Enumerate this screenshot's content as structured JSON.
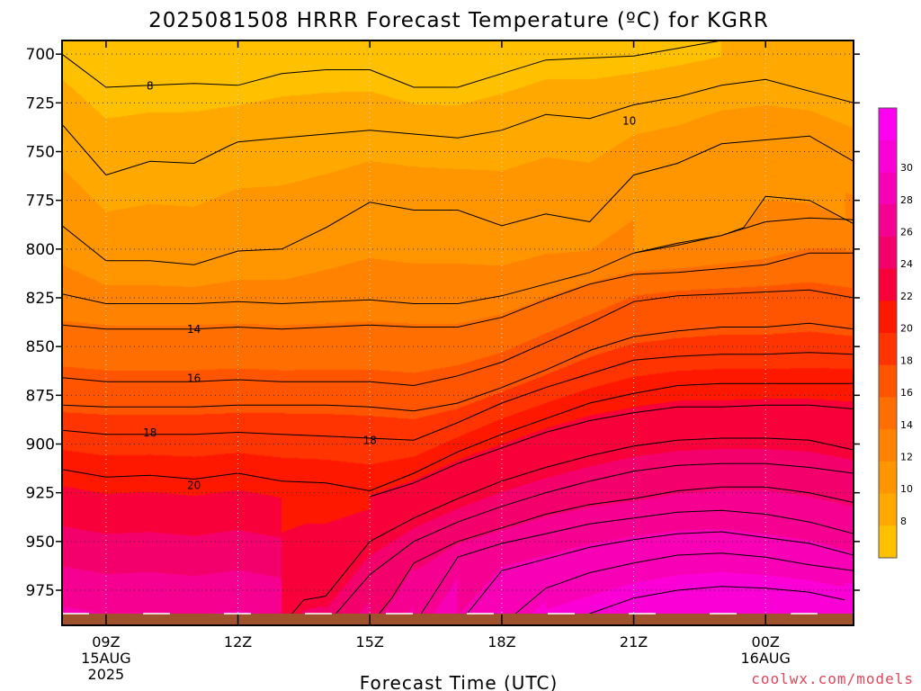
{
  "chart_data": {
    "type": "heatmap",
    "title": "2025081508 HRRR Forecast Temperature (ºC) for KGRR",
    "xlabel": "Forecast Time (UTC)",
    "ylabel": "",
    "credit": "coolwx.com/models",
    "x_ticks": [
      {
        "hour": 9,
        "label": "09Z",
        "sub1": "15AUG",
        "sub2": "2025"
      },
      {
        "hour": 12,
        "label": "12Z",
        "sub1": "",
        "sub2": ""
      },
      {
        "hour": 15,
        "label": "15Z",
        "sub1": "",
        "sub2": ""
      },
      {
        "hour": 18,
        "label": "18Z",
        "sub1": "",
        "sub2": ""
      },
      {
        "hour": 21,
        "label": "21Z",
        "sub1": "",
        "sub2": ""
      },
      {
        "hour": 24,
        "label": "00Z",
        "sub1": "16AUG",
        "sub2": ""
      }
    ],
    "xlim": [
      8,
      26
    ],
    "y_ticks": [
      700,
      725,
      750,
      775,
      800,
      825,
      850,
      875,
      900,
      925,
      950,
      975
    ],
    "ylim": [
      993,
      693
    ],
    "y_units": "hPa",
    "surface_pressure": 987,
    "colorbar": {
      "labels": [
        8,
        10,
        12,
        14,
        16,
        18,
        20,
        22,
        24,
        26,
        28,
        30
      ],
      "colors": [
        "#ffc000",
        "#ffa800",
        "#ff9600",
        "#ff8300",
        "#ff6e00",
        "#ff5500",
        "#ff3400",
        "#ff1800",
        "#f8003a",
        "#f4006c",
        "#f60092",
        "#f800b6",
        "#fb00d6",
        "#ff00f0"
      ]
    },
    "levels": [
      7,
      8,
      9,
      10,
      11,
      12,
      13,
      14,
      15,
      16,
      17,
      18,
      19,
      20,
      21,
      22,
      23,
      24,
      25,
      26,
      27,
      28,
      29,
      30
    ],
    "contour_labels": [
      {
        "value": 8,
        "hour": 10.0,
        "pressure": 716
      },
      {
        "value": 10,
        "hour": 20.9,
        "pressure": 734
      },
      {
        "value": 14,
        "hour": 11.0,
        "pressure": 841
      },
      {
        "value": 16,
        "hour": 11.0,
        "pressure": 866
      },
      {
        "value": 18,
        "hour": 10.0,
        "pressure": 894
      },
      {
        "value": 18,
        "hour": 15.0,
        "pressure": 898
      },
      {
        "value": 20,
        "hour": 11.0,
        "pressure": 921
      }
    ],
    "isotherms": [
      {
        "value": 8,
        "points": [
          [
            8,
            700
          ],
          [
            9,
            717
          ],
          [
            10,
            716
          ],
          [
            11,
            715
          ],
          [
            12,
            716
          ],
          [
            13,
            710
          ],
          [
            14,
            708
          ],
          [
            15,
            708
          ],
          [
            16,
            717
          ],
          [
            17,
            717
          ],
          [
            18,
            710
          ],
          [
            19,
            703
          ],
          [
            20,
            702
          ],
          [
            21,
            701
          ],
          [
            22,
            697
          ],
          [
            23,
            693
          ]
        ]
      },
      {
        "value": 10,
        "points": [
          [
            8,
            736
          ],
          [
            9,
            762
          ],
          [
            10,
            755
          ],
          [
            11,
            756
          ],
          [
            11.8,
            747
          ],
          [
            12,
            745
          ],
          [
            13,
            743
          ],
          [
            14,
            741
          ],
          [
            15,
            739
          ],
          [
            16,
            741
          ],
          [
            17,
            743
          ],
          [
            18,
            739
          ],
          [
            19,
            731
          ],
          [
            20,
            733
          ],
          [
            21,
            726
          ],
          [
            22,
            722
          ],
          [
            23,
            716
          ],
          [
            24,
            713
          ],
          [
            25,
            719
          ],
          [
            26,
            725
          ]
        ]
      },
      {
        "value": 11,
        "points": [
          [
            8,
            788
          ],
          [
            9,
            806
          ],
          [
            10,
            806
          ],
          [
            11,
            808
          ],
          [
            12,
            801
          ],
          [
            13,
            800
          ],
          [
            14,
            789
          ],
          [
            15,
            776
          ],
          [
            16,
            780
          ],
          [
            17,
            780
          ],
          [
            18,
            788
          ],
          [
            19,
            782
          ],
          [
            20,
            786
          ],
          [
            21,
            762
          ],
          [
            22,
            756
          ],
          [
            23,
            746
          ],
          [
            24,
            744
          ],
          [
            25,
            742
          ],
          [
            26,
            755
          ]
        ]
      },
      {
        "value": 12,
        "points": [
          [
            21,
            802
          ],
          [
            22,
            797
          ],
          [
            23,
            793
          ],
          [
            23.5,
            789
          ],
          [
            24,
            773
          ],
          [
            25,
            775
          ],
          [
            26,
            787
          ]
        ]
      },
      {
        "value": 13,
        "points": [
          [
            8,
            823
          ],
          [
            9,
            828
          ],
          [
            10,
            828
          ],
          [
            11,
            828
          ],
          [
            12,
            827
          ],
          [
            13,
            828
          ],
          [
            14,
            827
          ],
          [
            15,
            826
          ],
          [
            16,
            828
          ],
          [
            17,
            828
          ],
          [
            18,
            824
          ],
          [
            19,
            818
          ],
          [
            20,
            812
          ],
          [
            21,
            802
          ],
          [
            22,
            798
          ],
          [
            23,
            793
          ],
          [
            24,
            786
          ],
          [
            25,
            784
          ],
          [
            26,
            785
          ]
        ]
      },
      {
        "value": 14,
        "points": [
          [
            8,
            839
          ],
          [
            9,
            841
          ],
          [
            10,
            841
          ],
          [
            11,
            841
          ],
          [
            12,
            840
          ],
          [
            13,
            841
          ],
          [
            14,
            840
          ],
          [
            15,
            839
          ],
          [
            16,
            840
          ],
          [
            17,
            840
          ],
          [
            18,
            835
          ],
          [
            19,
            826
          ],
          [
            20,
            818
          ],
          [
            21,
            813
          ],
          [
            22,
            812
          ],
          [
            23,
            810
          ],
          [
            24,
            808
          ],
          [
            25,
            802
          ],
          [
            26,
            802
          ]
        ]
      },
      {
        "value": 16,
        "points": [
          [
            8,
            866
          ],
          [
            9,
            868
          ],
          [
            10,
            868
          ],
          [
            11,
            868
          ],
          [
            12,
            867
          ],
          [
            13,
            868
          ],
          [
            14,
            868
          ],
          [
            15,
            868
          ],
          [
            16,
            870
          ],
          [
            17,
            865
          ],
          [
            18,
            858
          ],
          [
            19,
            848
          ],
          [
            20,
            838
          ],
          [
            21,
            827
          ],
          [
            22,
            824
          ],
          [
            23,
            823
          ],
          [
            24,
            822
          ],
          [
            25,
            821
          ],
          [
            26,
            825
          ]
        ]
      },
      {
        "value": 17,
        "points": [
          [
            8,
            880
          ],
          [
            9,
            881
          ],
          [
            10,
            881
          ],
          [
            11,
            881
          ],
          [
            12,
            880
          ],
          [
            13,
            880
          ],
          [
            14,
            880
          ],
          [
            15,
            881
          ],
          [
            16,
            883
          ],
          [
            17,
            879
          ],
          [
            18,
            871
          ],
          [
            19,
            862
          ],
          [
            20,
            852
          ],
          [
            21,
            845
          ],
          [
            22,
            842
          ],
          [
            23,
            840
          ],
          [
            24,
            840
          ],
          [
            25,
            838
          ],
          [
            26,
            841
          ]
        ]
      },
      {
        "value": 18,
        "points": [
          [
            8,
            893
          ],
          [
            9,
            895
          ],
          [
            10,
            895
          ],
          [
            11,
            895
          ],
          [
            12,
            894
          ],
          [
            13,
            895
          ],
          [
            14,
            896
          ],
          [
            15,
            897
          ],
          [
            16,
            898
          ],
          [
            17,
            889
          ],
          [
            18,
            879
          ],
          [
            19,
            871
          ],
          [
            20,
            864
          ],
          [
            21,
            857
          ],
          [
            22,
            855
          ],
          [
            23,
            854
          ],
          [
            24,
            854
          ],
          [
            25,
            853
          ],
          [
            26,
            854
          ]
        ]
      },
      {
        "value": 20,
        "points": [
          [
            8,
            913
          ],
          [
            9,
            917
          ],
          [
            10,
            916
          ],
          [
            11,
            918
          ],
          [
            12,
            915
          ],
          [
            13,
            919
          ],
          [
            14,
            920
          ],
          [
            15,
            924
          ],
          [
            16,
            915
          ],
          [
            17,
            904
          ],
          [
            18,
            895
          ],
          [
            19,
            887
          ],
          [
            20,
            879
          ],
          [
            21,
            874
          ],
          [
            22,
            870
          ],
          [
            23,
            869
          ],
          [
            24,
            869
          ],
          [
            25,
            869
          ],
          [
            26,
            869
          ]
        ]
      },
      {
        "value": 21,
        "points": [
          [
            15,
            927
          ],
          [
            16,
            920
          ],
          [
            17,
            910
          ],
          [
            18,
            902
          ],
          [
            19,
            894
          ],
          [
            20,
            888
          ],
          [
            21,
            884
          ],
          [
            22,
            881
          ],
          [
            23,
            881
          ],
          [
            24,
            880
          ],
          [
            25,
            880
          ],
          [
            26,
            882
          ]
        ]
      },
      {
        "value": 22,
        "points": [
          [
            13,
            993
          ],
          [
            13.5,
            980
          ],
          [
            14,
            978
          ],
          [
            15,
            950
          ],
          [
            16,
            938
          ],
          [
            17,
            928
          ],
          [
            18,
            919
          ],
          [
            19,
            912
          ],
          [
            20,
            906
          ],
          [
            21,
            901
          ],
          [
            22,
            898
          ],
          [
            23,
            897
          ],
          [
            24,
            897
          ],
          [
            25,
            898
          ],
          [
            26,
            903
          ]
        ]
      },
      {
        "value": 23,
        "points": [
          [
            14,
            993
          ],
          [
            15,
            967
          ],
          [
            16,
            950
          ],
          [
            17,
            940
          ],
          [
            18,
            932
          ],
          [
            19,
            925
          ],
          [
            20,
            919
          ],
          [
            21,
            914
          ],
          [
            22,
            911
          ],
          [
            23,
            910
          ],
          [
            24,
            910
          ],
          [
            25,
            912
          ],
          [
            26,
            915
          ]
        ]
      },
      {
        "value": 24,
        "points": [
          [
            15,
            993
          ],
          [
            15.5,
            979
          ],
          [
            16,
            961
          ],
          [
            17,
            950
          ],
          [
            18,
            943
          ],
          [
            19,
            936
          ],
          [
            20,
            931
          ],
          [
            21,
            928
          ],
          [
            22,
            924
          ],
          [
            23,
            922
          ],
          [
            24,
            922
          ],
          [
            25,
            925
          ],
          [
            26,
            930
          ]
        ]
      },
      {
        "value": 25,
        "points": [
          [
            16,
            993
          ],
          [
            17,
            958
          ],
          [
            18,
            951
          ],
          [
            19,
            946
          ],
          [
            20,
            941
          ],
          [
            21,
            938
          ],
          [
            22,
            935
          ],
          [
            23,
            934
          ],
          [
            24,
            936
          ],
          [
            25,
            940
          ],
          [
            26,
            946
          ]
        ]
      },
      {
        "value": 26,
        "points": [
          [
            17,
            993
          ],
          [
            18,
            965
          ],
          [
            19,
            959
          ],
          [
            20,
            953
          ],
          [
            21,
            949
          ],
          [
            22,
            946
          ],
          [
            23,
            945
          ],
          [
            24,
            948
          ],
          [
            25,
            951
          ],
          [
            26,
            957
          ]
        ]
      },
      {
        "value": 27,
        "points": [
          [
            18,
            993
          ],
          [
            19,
            974
          ],
          [
            20,
            966
          ],
          [
            21,
            961
          ],
          [
            22,
            957
          ],
          [
            23,
            956
          ],
          [
            24,
            958
          ],
          [
            25,
            962
          ],
          [
            26,
            965
          ]
        ]
      },
      {
        "value": 28,
        "points": [
          [
            19,
            993
          ],
          [
            20,
            987
          ],
          [
            21,
            979
          ],
          [
            22,
            975
          ],
          [
            23,
            973
          ],
          [
            24,
            974
          ],
          [
            25,
            976
          ],
          [
            25.8,
            980
          ]
        ]
      }
    ]
  }
}
